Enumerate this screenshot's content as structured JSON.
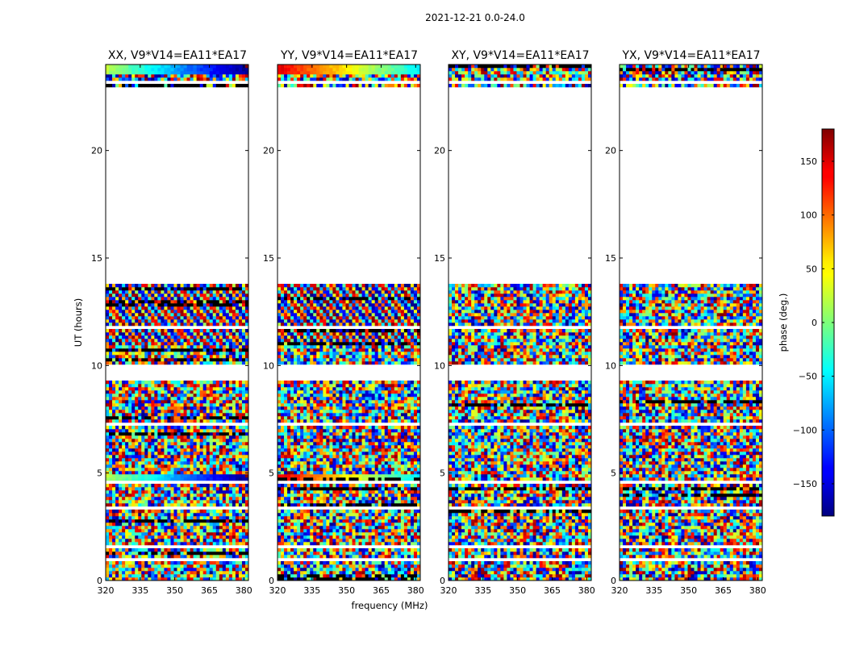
{
  "chart_data": {
    "type": "heatmap",
    "suptitle": "2021-12-21 0.0-24.0",
    "xlabel": "frequency (MHz)",
    "ylabel": "UT (hours)",
    "xlim": [
      320,
      382
    ],
    "ylim": [
      0,
      24
    ],
    "xticks": [
      "320",
      "335",
      "350",
      "365",
      "380"
    ],
    "yticks": [
      "0",
      "5",
      "10",
      "15",
      "20"
    ],
    "panels": [
      {
        "pol": "XX",
        "title": "XX, V9*V14=EA11*EA17"
      },
      {
        "pol": "YY",
        "title": "YY, V9*V14=EA11*EA17"
      },
      {
        "pol": "XY",
        "title": "XY, V9*V14=EA11*EA17"
      },
      {
        "pol": "YX",
        "title": "YX, V9*V14=EA11*EA17"
      }
    ],
    "observed_ut_ranges": [
      [
        0.0,
        9.3
      ],
      [
        9.9,
        13.8
      ],
      [
        23.0,
        24.0
      ]
    ],
    "flagged_ut_hours": [
      0.45,
      1.0,
      1.6,
      3.4,
      4.6,
      6.3,
      7.3,
      9.95,
      10.95,
      11.8,
      23.2,
      23.55
    ],
    "colorbar": {
      "label": "phase (deg.)",
      "range": [
        -180,
        180
      ],
      "ticks": [
        "150",
        "100",
        "50",
        "0",
        "−50",
        "−100",
        "−150"
      ],
      "colormap": "jet"
    }
  }
}
